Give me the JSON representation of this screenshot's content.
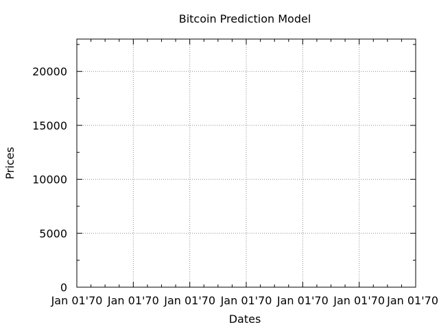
{
  "chart_data": {
    "type": "line",
    "title": "Bitcoin Prediction Model",
    "xlabel": "Dates",
    "ylabel": "Prices",
    "x_tick_labels": [
      "Jan 01'70",
      "Jan 01'70",
      "Jan 01'70",
      "Jan 01'70",
      "Jan 01'70",
      "Jan 01'70",
      "Jan 01'70"
    ],
    "y_ticks": [
      0,
      5000,
      10000,
      15000,
      20000
    ],
    "y_tick_labels": [
      "0",
      "5000",
      "10000",
      "15000",
      "20000"
    ],
    "ylim": [
      0,
      23000
    ],
    "grid": true,
    "series": []
  }
}
